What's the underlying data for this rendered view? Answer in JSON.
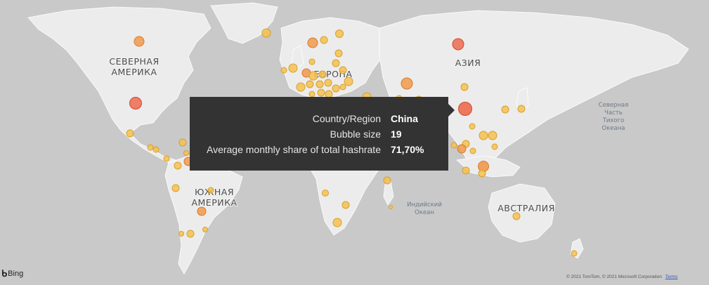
{
  "labels": {
    "north_america": [
      "СЕВЕРНАЯ",
      "АМЕРИКА"
    ],
    "europe": "ЕВРОПА",
    "asia": "АЗИЯ",
    "south_america": [
      "ЮЖНАЯ",
      "АМЕРИКА"
    ],
    "australia": "АВСТРАЛИЯ",
    "pacific_ocean": [
      "Северная",
      "Часть",
      "Тихого",
      "Океана"
    ],
    "indian_ocean": [
      "Индийский",
      "Океан"
    ]
  },
  "tooltip": {
    "rows": [
      {
        "key": "Country/Region",
        "value": "China"
      },
      {
        "key": "Bubble size",
        "value": "19"
      },
      {
        "key": "Average monthly share of total hashrate",
        "value": "71,70%"
      }
    ]
  },
  "attribution": {
    "logo": "Bing",
    "copyright": "© 2021 TomTom, © 2021 Microsoft Corporation",
    "terms": "Terms"
  },
  "colors": {
    "ocean": "#c9c9c9",
    "land": "#ececec",
    "bubble_low": "#f6c24f",
    "bubble_mid": "#f19a4c",
    "bubble_high": "#ee6b4e",
    "tooltip_bg": "#333333"
  }
}
